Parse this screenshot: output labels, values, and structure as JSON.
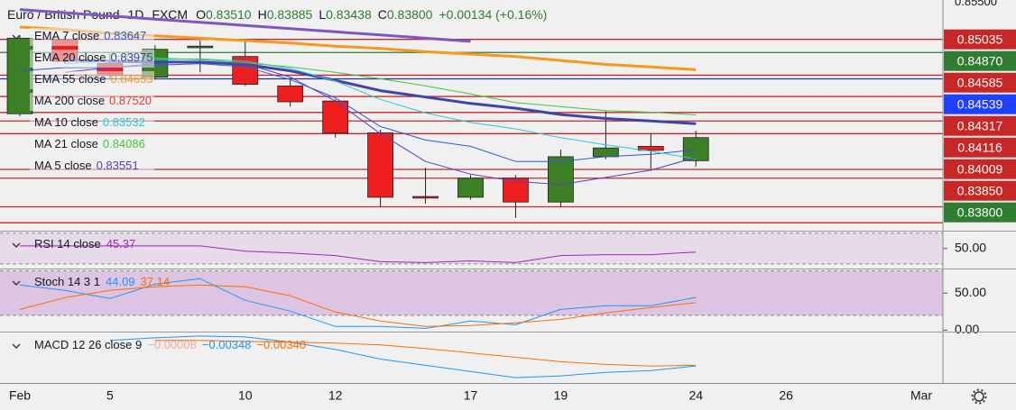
{
  "chart_data": [
    {
      "type": "candlestick",
      "title": "Euro / British Pound",
      "interval": "1D",
      "source": "FXCM",
      "quote": [
        {
          "key": "O",
          "value": "0.83510"
        },
        {
          "key": "H",
          "value": "0.83885"
        },
        {
          "key": "L",
          "value": "0.83438"
        },
        {
          "key": "C",
          "value": "0.83800"
        }
      ],
      "change": "+0.00134 (+0.16%)",
      "categories": [
        "Feb",
        null,
        "5",
        null,
        null,
        "10",
        null,
        "12",
        null,
        null,
        "17",
        null,
        "19",
        null,
        null,
        "24",
        null,
        "26",
        null,
        null,
        "Mar"
      ],
      "up_color": "#3d7f24",
      "down_color": "#ef1f1f",
      "candles": [
        {
          "open": 0.841,
          "high": 0.8508,
          "low": 0.8407,
          "close": 0.8505
        },
        {
          "open": 0.8503,
          "high": 0.8508,
          "low": 0.8473,
          "close": 0.8476
        },
        {
          "open": 0.8473,
          "high": 0.8485,
          "low": 0.8453,
          "close": 0.846
        },
        {
          "open": 0.8456,
          "high": 0.8496,
          "low": 0.8453,
          "close": 0.8491
        },
        {
          "open": 0.8493,
          "high": 0.8502,
          "low": 0.8462,
          "close": 0.8495
        },
        {
          "open": 0.8482,
          "high": 0.8504,
          "low": 0.8445,
          "close": 0.8447
        },
        {
          "open": 0.8445,
          "high": 0.8455,
          "low": 0.8419,
          "close": 0.8425
        },
        {
          "open": 0.8426,
          "high": 0.8428,
          "low": 0.838,
          "close": 0.8386
        },
        {
          "open": 0.8386,
          "high": 0.839,
          "low": 0.8293,
          "close": 0.8305
        },
        {
          "open": 0.8306,
          "high": 0.8342,
          "low": 0.8297,
          "close": 0.8304
        },
        {
          "open": 0.8305,
          "high": 0.8333,
          "low": 0.8302,
          "close": 0.8329
        },
        {
          "open": 0.8329,
          "high": 0.8333,
          "low": 0.8279,
          "close": 0.8299
        },
        {
          "open": 0.8299,
          "high": 0.8365,
          "low": 0.8293,
          "close": 0.8356
        },
        {
          "open": 0.8356,
          "high": 0.8413,
          "low": 0.8353,
          "close": 0.8367
        },
        {
          "open": 0.8369,
          "high": 0.8385,
          "low": 0.8341,
          "close": 0.8364
        },
        {
          "open": 0.8351,
          "high": 0.83885,
          "low": 0.83438,
          "close": 0.838
        },
        null,
        null,
        null,
        null,
        null
      ],
      "ylim": [
        0.8263,
        0.8553
      ],
      "yticks": [
        {
          "value": 0.855,
          "label": "0.85500"
        }
      ],
      "series": [
        {
          "name": "EMA 7 close",
          "value_label": "0.83647",
          "color": "#2a5bd7",
          "width": 1,
          "values": [
            0.8464,
            0.8468,
            0.8468,
            0.8471,
            0.8473,
            0.8469,
            0.8453,
            0.843,
            0.8394,
            0.8377,
            0.8369,
            0.835,
            0.835,
            0.8356,
            0.8359,
            0.83647,
            null,
            null,
            null,
            null,
            null
          ]
        },
        {
          "name": "EMA 20 close",
          "value_label": "0.83975",
          "color": "#3f45a8",
          "width": 3,
          "values": [
            null,
            0.8478,
            0.8476,
            0.8475,
            0.8475,
            0.8472,
            0.8464,
            0.8452,
            0.8439,
            0.8431,
            0.8423,
            0.8417,
            0.8409,
            0.8404,
            0.8401,
            0.83975,
            null,
            null,
            null,
            null,
            null
          ]
        },
        {
          "name": "EMA 55 close",
          "value_label": "0.84653",
          "color": "#f7981d",
          "width": 3,
          "values": [
            0.8519,
            0.8516,
            0.8511,
            0.8508,
            0.8505,
            0.8502,
            0.8499,
            0.8495,
            0.8492,
            0.8488,
            0.8485,
            0.8482,
            0.8477,
            0.8472,
            0.8469,
            0.84653,
            null,
            null,
            null,
            null,
            null
          ]
        },
        {
          "name": "MA 200 close",
          "value_label": "0.87520",
          "color": "#e53935"
        },
        {
          "name": "MA 10 close",
          "value_label": "0.83532",
          "color": "#26c9dc",
          "width": 1,
          "values": [
            null,
            0.8473,
            0.8476,
            0.8478,
            0.8479,
            0.8476,
            0.8467,
            0.8451,
            0.8428,
            0.8411,
            0.8399,
            0.8391,
            0.838,
            0.8371,
            0.8363,
            0.83532,
            null,
            null,
            null,
            null,
            null
          ]
        },
        {
          "name": "MA 21 close",
          "value_label": "0.84086",
          "color": "#3ec83e",
          "width": 1,
          "values": [
            null,
            null,
            0.8483,
            0.848,
            0.8478,
            0.8474,
            0.8469,
            0.8462,
            0.8454,
            0.8445,
            0.8435,
            0.8424,
            0.8419,
            0.8414,
            0.8412,
            0.84086,
            null,
            null,
            null,
            null,
            null
          ]
        },
        {
          "name": "MA 5 close",
          "value_label": "0.83551",
          "color": "#5b3fb5",
          "width": 1,
          "values": [
            null,
            0.8462,
            0.8468,
            0.8473,
            0.8476,
            0.8473,
            0.8456,
            0.8426,
            0.8385,
            0.835,
            0.8334,
            0.8325,
            0.8321,
            0.833,
            0.8339,
            0.83551,
            null,
            null,
            null,
            null,
            null
          ]
        },
        {
          "color": "#7e57c2",
          "width": 3,
          "values": [
            0.8541,
            0.8537,
            0.8533,
            0.8529,
            0.8525,
            0.8521,
            0.8517,
            0.8513,
            0.8509,
            0.8505,
            0.8501,
            null,
            null,
            null,
            null,
            null,
            null,
            null,
            null,
            null,
            null
          ]
        }
      ],
      "price_labels": [
        {
          "value": 0.85035,
          "label": "0.85035",
          "color": "#c62828",
          "line_color": "#c62828"
        },
        {
          "value": 0.8487,
          "label": "0.84870",
          "color": "#2e7d32",
          "line_color": "#2e7d32"
        },
        {
          "value": 0.84585,
          "label": "0.84585",
          "color": "#c62828",
          "line_color": "#c62828"
        },
        {
          "value": 0.84539,
          "label": "0.84539",
          "color": "#1e40ff",
          "line_color": "#283593"
        },
        {
          "value": 0.84317,
          "label": "0.84317",
          "color": "#c62828",
          "line_color": "#c62828"
        },
        {
          "value": 0.84116,
          "label": "0.84116",
          "color": "#c62828",
          "line_color": "#c62828"
        },
        {
          "value": 0.84009,
          "label": "0.84009",
          "color": "#c62828",
          "line_color": "#c62828"
        },
        {
          "value": 0.8385,
          "label": "0.83850",
          "color": "#c62828",
          "line_color": "#c62828"
        },
        {
          "value": 0.838,
          "label": "0.83800",
          "color": "#2e7d32"
        }
      ],
      "levels": [
        {
          "value": 0.834,
          "color": "#c62828"
        },
        {
          "value": 0.8329,
          "color": "#c62828"
        },
        {
          "value": 0.8293,
          "color": "#c62828"
        },
        {
          "value": 0.8273,
          "color": "#c62828"
        }
      ]
    },
    {
      "type": "line",
      "title": "RSI 14 close",
      "ylim": [
        24,
        72
      ],
      "yticks": [
        {
          "value": 50,
          "label": "50.00"
        }
      ],
      "band": [
        30,
        70
      ],
      "band_color": "rgba(156,39,176,0.10)",
      "series": [
        {
          "value_label": "45.37",
          "color": "#9c27b0",
          "values": [
            53.4,
            53.4,
            53.4,
            53.4,
            53.4,
            46.6,
            44.3,
            40.9,
            32.9,
            31.7,
            34.0,
            31.7,
            40.9,
            42.0,
            42.0,
            45.37,
            null,
            null,
            null,
            null,
            null
          ]
        }
      ]
    },
    {
      "type": "line",
      "title": "Stoch 14 3 1",
      "ylim": [
        -2,
        82
      ],
      "yticks": [
        {
          "value": 50,
          "label": "50.00"
        },
        {
          "value": 0,
          "label": "0.00"
        }
      ],
      "band": [
        20,
        80
      ],
      "band_color": "rgba(156,39,176,0.22)",
      "series": [
        {
          "value_label": "44.09",
          "color": "#2196f3",
          "values": [
            61,
            53.7,
            42.7,
            62.2,
            69.5,
            40.2,
            25.6,
            4.9,
            4.9,
            2.4,
            12.2,
            7.3,
            28,
            32.9,
            32.9,
            44.09,
            null,
            null,
            null,
            null,
            null
          ]
        },
        {
          "value_label": "37.14",
          "color": "#ff6d00",
          "values": [
            28,
            43.9,
            53.7,
            58.5,
            61,
            58.5,
            46.3,
            24.4,
            12.2,
            4.9,
            6.1,
            9.8,
            14.6,
            23.2,
            30.5,
            37.14,
            null,
            null,
            null,
            null,
            null
          ]
        }
      ]
    },
    {
      "type": "line",
      "title": "MACD 12 26 close 9",
      "ylim": [
        -0.0054,
        0.0003
      ],
      "histogram_label": "−0.00008",
      "histogram_color": "#f5a99c",
      "series": [
        {
          "value_label": "−0.00348",
          "color": "#2196f3",
          "values": [
            null,
            null,
            -0.0006,
            -0.0003,
            -0.0001,
            -0.0002,
            -0.0008,
            -0.0016,
            -0.0027,
            -0.0034,
            -0.0041,
            -0.0048,
            -0.0046,
            -0.0042,
            -0.004,
            -0.00348,
            null,
            null,
            null,
            null,
            null
          ]
        },
        {
          "value_label": "−0.00340",
          "color": "#ff6d00",
          "values": [
            null,
            null,
            null,
            -0.0006,
            -0.0006,
            -0.0007,
            -0.0008,
            -0.0009,
            -0.0011,
            -0.0015,
            -0.002,
            -0.0025,
            -0.003,
            -0.0033,
            -0.0035,
            -0.0034,
            null,
            null,
            null,
            null,
            null
          ]
        }
      ]
    }
  ]
}
